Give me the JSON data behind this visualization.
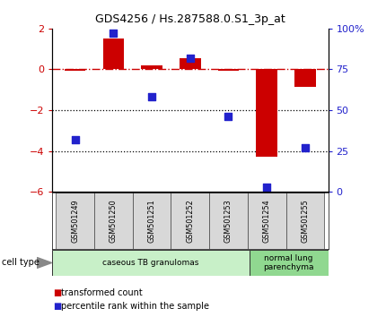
{
  "title": "GDS4256 / Hs.287588.0.S1_3p_at",
  "categories": [
    "GSM501249",
    "GSM501250",
    "GSM501251",
    "GSM501252",
    "GSM501253",
    "GSM501254",
    "GSM501255"
  ],
  "red_values": [
    -0.07,
    1.5,
    0.18,
    0.55,
    -0.07,
    -4.3,
    -0.85
  ],
  "blue_values_pct": [
    32,
    97,
    58,
    82,
    46,
    3,
    27
  ],
  "ylim_left": [
    -6,
    2
  ],
  "ylim_right": [
    0,
    100
  ],
  "yticks_left": [
    -6,
    -4,
    -2,
    0,
    2
  ],
  "yticks_right": [
    0,
    25,
    50,
    75,
    100
  ],
  "ytick_right_labels": [
    "0",
    "25",
    "50",
    "75",
    "100%"
  ],
  "dotted_lines": [
    -2,
    -4
  ],
  "cell_type_groups": [
    {
      "label": "caseous TB granulomas",
      "start": 0,
      "end": 5,
      "color": "#c8f0c8"
    },
    {
      "label": "normal lung\nparenchyma",
      "start": 5,
      "end": 7,
      "color": "#90d890"
    }
  ],
  "legend_items": [
    {
      "color": "#cc0000",
      "label": "transformed count"
    },
    {
      "color": "#2222cc",
      "label": "percentile rank within the sample"
    }
  ],
  "red_bar_width": 0.55,
  "red_color": "#cc0000",
  "blue_color": "#2222cc",
  "cell_type_label": "cell type"
}
